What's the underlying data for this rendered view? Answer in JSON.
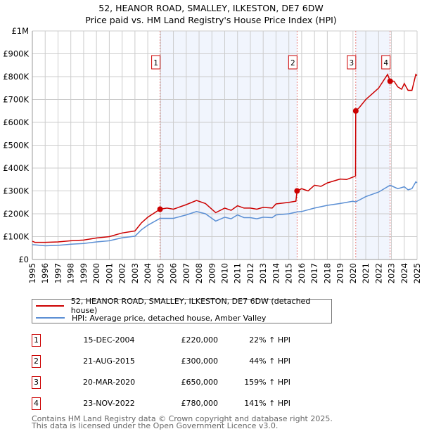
{
  "chart_data": {
    "type": "line",
    "title": "52, HEANOR ROAD, SMALLEY, ILKESTON, DE7 6DW",
    "subtitle": "Price paid vs. HM Land Registry's House Price Index (HPI)",
    "xlim": [
      1995,
      2025
    ],
    "ylim": [
      0,
      1000000
    ],
    "y_ticks": [
      {
        "v": 0,
        "label": "£0"
      },
      {
        "v": 100000,
        "label": "£100K"
      },
      {
        "v": 200000,
        "label": "£200K"
      },
      {
        "v": 300000,
        "label": "£300K"
      },
      {
        "v": 400000,
        "label": "£400K"
      },
      {
        "v": 500000,
        "label": "£500K"
      },
      {
        "v": 600000,
        "label": "£600K"
      },
      {
        "v": 700000,
        "label": "£700K"
      },
      {
        "v": 800000,
        "label": "£800K"
      },
      {
        "v": 900000,
        "label": "£900K"
      },
      {
        "v": 1000000,
        "label": "£1M"
      }
    ],
    "x_ticks": [
      "1995",
      "1996",
      "1997",
      "1998",
      "1999",
      "2000",
      "2001",
      "2002",
      "2003",
      "2004",
      "2005",
      "2006",
      "2007",
      "2008",
      "2009",
      "2010",
      "2011",
      "2012",
      "2013",
      "2014",
      "2015",
      "2016",
      "2017",
      "2018",
      "2019",
      "2020",
      "2021",
      "2022",
      "2023",
      "2024",
      "2025"
    ],
    "grid": true,
    "shaded_ranges": [
      [
        2004.96,
        2015.64
      ],
      [
        2020.22,
        2022.9
      ]
    ],
    "series": [
      {
        "name": "52, HEANOR ROAD, SMALLEY, ILKESTON, DE7 6DW (detached house)",
        "color": "#cc0000",
        "points": [
          [
            1995,
            80000
          ],
          [
            1995.2,
            75000
          ],
          [
            1996,
            75000
          ],
          [
            1997,
            77000
          ],
          [
            1998,
            82000
          ],
          [
            1999,
            85000
          ],
          [
            2000,
            94000
          ],
          [
            2001,
            100000
          ],
          [
            2002,
            116000
          ],
          [
            2003,
            125000
          ],
          [
            2003.5,
            160000
          ],
          [
            2004,
            185000
          ],
          [
            2004.96,
            220000
          ],
          [
            2005.5,
            225000
          ],
          [
            2006,
            220000
          ],
          [
            2007,
            240000
          ],
          [
            2007.8,
            258000
          ],
          [
            2008.5,
            245000
          ],
          [
            2009.3,
            205000
          ],
          [
            2010,
            225000
          ],
          [
            2010.5,
            215000
          ],
          [
            2011,
            235000
          ],
          [
            2011.5,
            225000
          ],
          [
            2012,
            225000
          ],
          [
            2012.5,
            220000
          ],
          [
            2013,
            228000
          ],
          [
            2013.7,
            225000
          ],
          [
            2014,
            243000
          ],
          [
            2015,
            250000
          ],
          [
            2015.55,
            255000
          ],
          [
            2015.64,
            300000
          ],
          [
            2016,
            310000
          ],
          [
            2016.5,
            300000
          ],
          [
            2017,
            325000
          ],
          [
            2017.5,
            320000
          ],
          [
            2018,
            335000
          ],
          [
            2019,
            352000
          ],
          [
            2019.5,
            350000
          ],
          [
            2020.2,
            365000
          ],
          [
            2020.22,
            650000
          ],
          [
            2020.5,
            665000
          ],
          [
            2021,
            700000
          ],
          [
            2021.5,
            725000
          ],
          [
            2022,
            750000
          ],
          [
            2022.7,
            810000
          ],
          [
            2022.9,
            780000
          ],
          [
            2023.2,
            780000
          ],
          [
            2023.5,
            755000
          ],
          [
            2023.8,
            745000
          ],
          [
            2024,
            770000
          ],
          [
            2024.3,
            740000
          ],
          [
            2024.6,
            740000
          ],
          [
            2024.9,
            810000
          ],
          [
            2025,
            805000
          ]
        ]
      },
      {
        "name": "HPI: Average price, detached house, Amber Valley",
        "color": "#5b8fd4",
        "points": [
          [
            1995,
            65000
          ],
          [
            1996,
            60000
          ],
          [
            1997,
            62000
          ],
          [
            1998,
            67000
          ],
          [
            1999,
            70000
          ],
          [
            2000,
            77000
          ],
          [
            2001,
            82000
          ],
          [
            2002,
            95000
          ],
          [
            2003,
            102000
          ],
          [
            2003.5,
            130000
          ],
          [
            2004,
            150000
          ],
          [
            2004.96,
            180000
          ],
          [
            2006,
            180000
          ],
          [
            2007,
            195000
          ],
          [
            2007.8,
            210000
          ],
          [
            2008.5,
            200000
          ],
          [
            2009.3,
            168000
          ],
          [
            2010,
            185000
          ],
          [
            2010.5,
            178000
          ],
          [
            2011,
            195000
          ],
          [
            2011.5,
            183000
          ],
          [
            2012,
            183000
          ],
          [
            2012.5,
            178000
          ],
          [
            2013,
            185000
          ],
          [
            2013.7,
            183000
          ],
          [
            2014,
            195000
          ],
          [
            2015,
            200000
          ],
          [
            2015.64,
            208000
          ],
          [
            2016,
            210000
          ],
          [
            2017,
            225000
          ],
          [
            2018,
            237000
          ],
          [
            2019,
            245000
          ],
          [
            2020,
            255000
          ],
          [
            2020.22,
            252000
          ],
          [
            2021,
            275000
          ],
          [
            2022,
            295000
          ],
          [
            2022.9,
            325000
          ],
          [
            2023.5,
            310000
          ],
          [
            2024,
            318000
          ],
          [
            2024.3,
            305000
          ],
          [
            2024.6,
            310000
          ],
          [
            2024.9,
            340000
          ],
          [
            2025,
            335000
          ]
        ]
      }
    ],
    "sales": [
      {
        "id": "1",
        "x": 2004.96,
        "price": 220000,
        "date": "15-DEC-2004",
        "price_label": "£220,000",
        "hpi": "22% ↑ HPI"
      },
      {
        "id": "2",
        "x": 2015.64,
        "price": 300000,
        "date": "21-AUG-2015",
        "price_label": "£300,000",
        "hpi": "44% ↑ HPI"
      },
      {
        "id": "3",
        "x": 2020.22,
        "price": 650000,
        "date": "20-MAR-2020",
        "price_label": "£650,000",
        "hpi": "159% ↑ HPI"
      },
      {
        "id": "4",
        "x": 2022.9,
        "price": 780000,
        "date": "23-NOV-2022",
        "price_label": "£780,000",
        "hpi": "141% ↑ HPI"
      }
    ]
  },
  "footer": {
    "line1": "Contains HM Land Registry data © Crown copyright and database right 2025.",
    "line2": "This data is licensed under the Open Government Licence v3.0."
  }
}
